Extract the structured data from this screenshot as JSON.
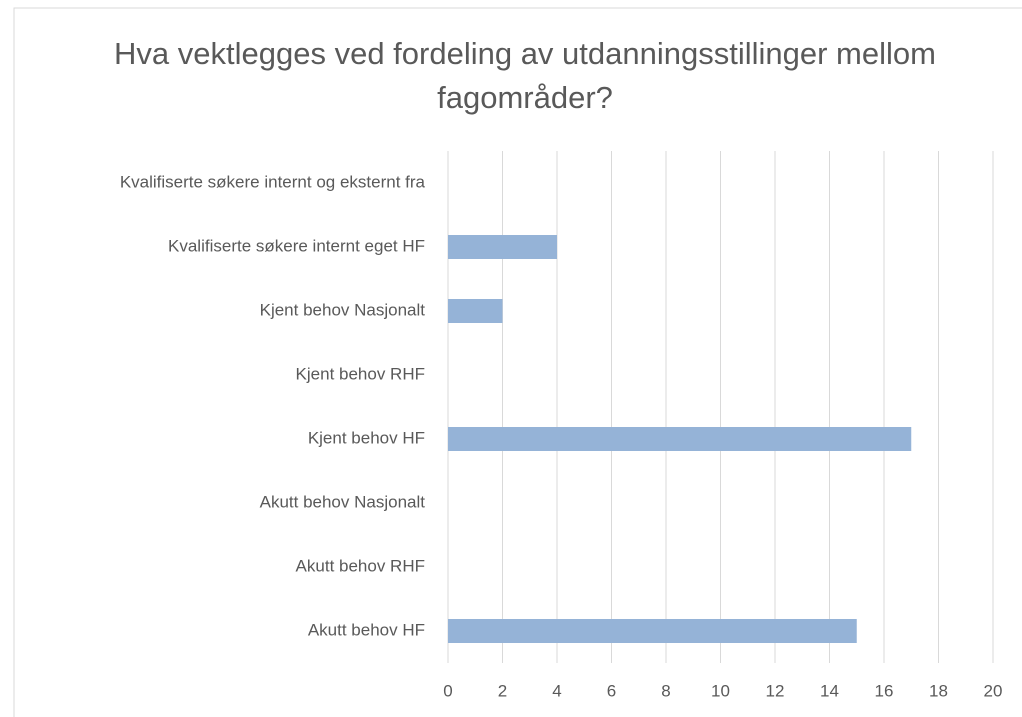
{
  "chart_data": {
    "type": "barh",
    "title": "Hva vektlegges ved fordeling av utdanningsstillinger mellom fagområder?",
    "categories": [
      "Kvalifiserte søkere internt og eksternt fra",
      "Kvalifiserte søkere internt eget HF",
      "Kjent behov Nasjonalt",
      "Kjent behov RHF",
      "Kjent behov HF",
      "Akutt behov Nasjonalt",
      "Akutt behov RHF",
      "Akutt behov HF"
    ],
    "values": [
      0,
      4,
      2,
      0,
      17,
      0,
      0,
      15
    ],
    "color": "#95b3d7",
    "xlim": [
      0,
      20
    ],
    "xticks": [
      0,
      2,
      4,
      6,
      8,
      10,
      12,
      14,
      16,
      18,
      20
    ],
    "grid": true
  }
}
